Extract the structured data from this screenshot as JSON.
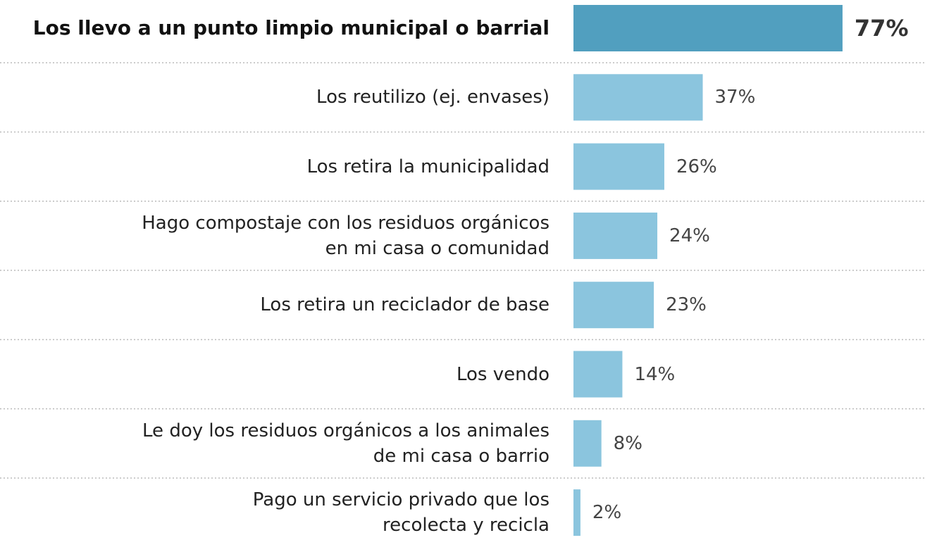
{
  "chart_data": {
    "type": "bar",
    "orientation": "horizontal",
    "categories": [
      "Los llevo a un punto limpio municipal o barrial",
      "Los reutilizo (ej. envases)",
      "Los retira la municipalidad",
      "Hago compostaje con los residuos orgánicos\nen mi casa o comunidad",
      "Los retira un reciclador de base",
      "Los vendo",
      "Le doy los residuos orgánicos a los animales\nde mi casa o barrio",
      "Pago un servicio privado que los\nrecolecta y recicla"
    ],
    "values": [
      77,
      37,
      26,
      24,
      23,
      14,
      8,
      2
    ],
    "value_labels": [
      "77%",
      "37%",
      "26%",
      "24%",
      "23%",
      "14%",
      "8%",
      "2%"
    ],
    "colors": [
      "#519fbf",
      "#8bc5de",
      "#8bc5de",
      "#8bc5de",
      "#8bc5de",
      "#8bc5de",
      "#8bc5de",
      "#8bc5de"
    ],
    "highlight": 0,
    "xlim": [
      0,
      100
    ]
  }
}
